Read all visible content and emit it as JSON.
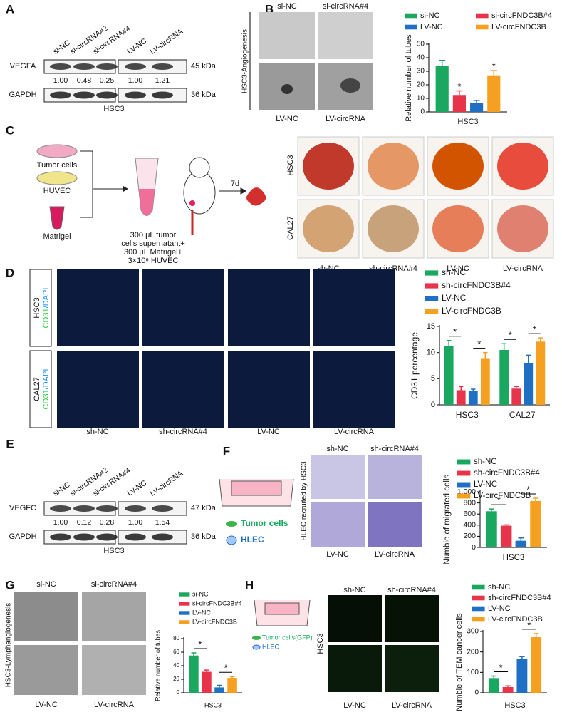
{
  "panel_labels": [
    "A",
    "B",
    "C",
    "D",
    "E",
    "F",
    "G",
    "H"
  ],
  "A": {
    "lanes": [
      "si-NC",
      "si-circRNA#2",
      "si-circRNA#4",
      "LV-NC",
      "LV-circRNA"
    ],
    "blots": [
      "VEGFA",
      "GAPDH"
    ],
    "sizes": [
      "45 kDa",
      "36 kDa"
    ],
    "ratios": [
      "1.00",
      "0.48",
      "0.25",
      "1.00",
      "1.21"
    ],
    "cell_line": "HSC3"
  },
  "B": {
    "top": [
      "si-NC",
      "si-circRNA#4"
    ],
    "bottom": [
      "LV-NC",
      "LV-circRNA"
    ],
    "side": "HSC3-Angiogenesis"
  },
  "C": {
    "inputs": [
      "Tumor cells",
      "HUVEC",
      "Matrigel"
    ],
    "mix": [
      "300 μL tumor",
      "cells supernatant+",
      "300 μL Matrigel+",
      "3×10⁶ HUVEC"
    ],
    "time": "7d",
    "rows": [
      "HSC3",
      "CAL27"
    ],
    "columns": [
      "sh-NC",
      "sh-circRNA#4",
      "LV-NC",
      "LV-circRNA"
    ]
  },
  "D": {
    "rows": [
      "HSC3",
      "CAL27"
    ],
    "stain": [
      "CD31",
      "/DAPI"
    ],
    "columns": [
      "sh-NC",
      "sh-circRNA#4",
      "LV-NC",
      "LV-circRNA"
    ]
  },
  "E": {
    "lanes": [
      "si-NC",
      "si-circRNA#2",
      "si-circRNA#4",
      "LV-NC",
      "LV-circRNA"
    ],
    "blots": [
      "VEGFC",
      "GAPDH"
    ],
    "sizes": [
      "47 kDa",
      "36 kDa"
    ],
    "ratios": [
      "1.00",
      "0.12",
      "0.28",
      "1.00",
      "1.54"
    ],
    "cell_line": "HSC3"
  },
  "F": {
    "legend": [
      "Tumor cells",
      "HLEC"
    ],
    "side": "HLEC recruited by HSC3",
    "top": [
      "sh-NC",
      "sh-circRNA#4"
    ],
    "bottom": [
      "LV-NC",
      "LV-circRNA"
    ]
  },
  "G": {
    "top": [
      "si-NC",
      "si-circRNA#4"
    ],
    "bottom": [
      "LV-NC",
      "LV-circRNA"
    ],
    "side": "HSC3-Lymphangiogenesis"
  },
  "H": {
    "legend": [
      "Tumor cells(GFP)",
      "HLEC"
    ],
    "side": "HSC3",
    "top": [
      "sh-NC",
      "sh-circRNA#4"
    ],
    "bottom": [
      "LV-NC",
      "LV-circRNA"
    ]
  },
  "chart_data": [
    {
      "type": "bar",
      "categories": [
        "HSC3"
      ],
      "ylabel": "Relative number of tubes",
      "ylim": [
        0,
        50
      ],
      "yticks": [
        0,
        10,
        20,
        30,
        40,
        50
      ],
      "series": [
        {
          "name": "si-NC",
          "color": "#1aa760",
          "values": [
            34
          ],
          "errors": [
            4
          ]
        },
        {
          "name": "si-circFNDC3B#4",
          "color": "#e8344a",
          "values": [
            12.5
          ],
          "errors": [
            3
          ]
        },
        {
          "name": "LV-NC",
          "color": "#1f6fc5",
          "values": [
            6.5
          ],
          "errors": [
            2
          ]
        },
        {
          "name": "LV-circFNDC3B",
          "color": "#f5a020",
          "values": [
            27
          ],
          "errors": [
            3.5
          ]
        }
      ],
      "annotations": [
        "*",
        "*"
      ]
    },
    {
      "type": "bar",
      "categories": [
        "HSC3",
        "CAL27"
      ],
      "ylabel": "CD31 percentage",
      "ylim": [
        0,
        15
      ],
      "yticks": [
        0,
        5,
        10,
        15
      ],
      "series": [
        {
          "name": "sh-NC",
          "color": "#1aa760",
          "values": [
            11.3,
            10.5
          ],
          "errors": [
            1,
            1.2
          ]
        },
        {
          "name": "sh-circFNDC3B#4",
          "color": "#e8344a",
          "values": [
            2.8,
            3.1
          ],
          "errors": [
            0.7,
            0.4
          ]
        },
        {
          "name": "LV-NC",
          "color": "#1f6fc5",
          "values": [
            2.7,
            8
          ],
          "errors": [
            0.3,
            1.5
          ]
        },
        {
          "name": "LV-circFNDC3B",
          "color": "#f5a020",
          "values": [
            8.8,
            12.1
          ],
          "errors": [
            1.2,
            0.7
          ]
        }
      ],
      "annotations": [
        "*",
        "*",
        "*",
        "*"
      ]
    },
    {
      "type": "bar",
      "categories": [
        "HSC3"
      ],
      "ylabel": "Numble of migrated cells",
      "ylim": [
        0,
        1000
      ],
      "yticks": [
        0,
        200,
        400,
        600,
        800,
        {
          "value": 1000,
          "label": "1,000"
        }
      ],
      "series": [
        {
          "name": "sh-NC",
          "color": "#1aa760",
          "values": [
            650
          ],
          "errors": [
            40
          ]
        },
        {
          "name": "sh-circFNDC3B#4",
          "color": "#e8344a",
          "values": [
            390
          ],
          "errors": [
            15
          ]
        },
        {
          "name": "LV-NC",
          "color": "#1f6fc5",
          "values": [
            120
          ],
          "errors": [
            50
          ]
        },
        {
          "name": "LV-circFNDC3B",
          "color": "#f5a020",
          "values": [
            835
          ],
          "errors": [
            50
          ]
        }
      ],
      "annotations": [
        "*",
        "*"
      ]
    },
    {
      "type": "bar",
      "categories": [
        "HSC3"
      ],
      "ylabel": "Relative number of tubes",
      "ylim": [
        0,
        80
      ],
      "yticks": [
        0,
        20,
        40,
        60,
        80
      ],
      "series": [
        {
          "name": "si-NC",
          "color": "#1aa760",
          "values": [
            55
          ],
          "errors": [
            4
          ]
        },
        {
          "name": "si-circFNDC3B#4",
          "color": "#e8344a",
          "values": [
            31
          ],
          "errors": [
            2.5
          ]
        },
        {
          "name": "LV-NC",
          "color": "#1f6fc5",
          "values": [
            8
          ],
          "errors": [
            3
          ]
        },
        {
          "name": "LV-circFNDC3B",
          "color": "#f5a020",
          "values": [
            22
          ],
          "errors": [
            2
          ]
        }
      ],
      "annotations": [
        "*",
        "*"
      ]
    },
    {
      "type": "bar",
      "categories": [
        "HSC3"
      ],
      "ylabel": "Numble of TEM cancer cells",
      "ylim": [
        0,
        300
      ],
      "yticks": [
        0,
        100,
        200,
        300
      ],
      "series": [
        {
          "name": "sh-NC",
          "color": "#1aa760",
          "values": [
            72
          ],
          "errors": [
            10
          ]
        },
        {
          "name": "sh-circFNDC3B#4",
          "color": "#e8344a",
          "values": [
            28
          ],
          "errors": [
            6
          ]
        },
        {
          "name": "LV-NC",
          "color": "#1f6fc5",
          "values": [
            165
          ],
          "errors": [
            12
          ]
        },
        {
          "name": "LV-circFNDC3B",
          "color": "#f5a020",
          "values": [
            272
          ],
          "errors": [
            18
          ]
        }
      ],
      "annotations": [
        "*",
        "*"
      ]
    }
  ]
}
